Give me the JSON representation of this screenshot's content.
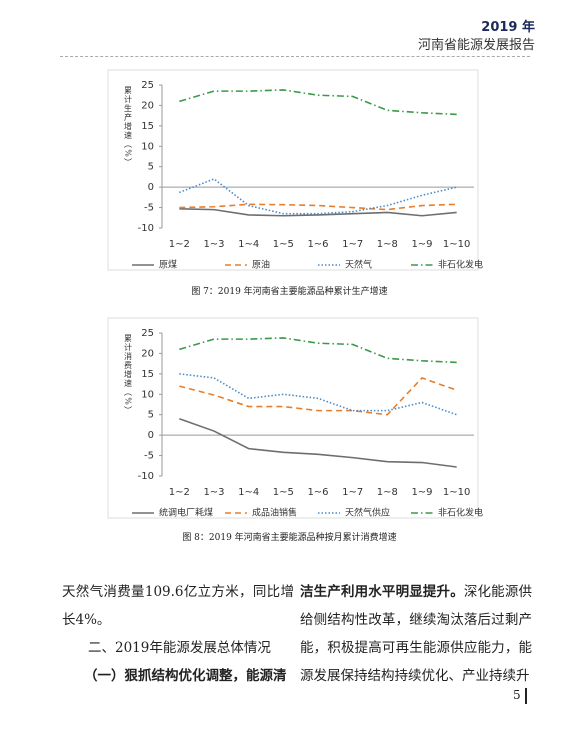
{
  "header": {
    "year": "2019 年",
    "title": "河南省能源发展报告"
  },
  "chart_data": [
    {
      "type": "line",
      "y_label": "累计生产增速（%）",
      "caption": "图 7：2019 年河南省主要能源品种累计生产增速",
      "categories": [
        "1~2",
        "1~3",
        "1~4",
        "1~5",
        "1~6",
        "1~7",
        "1~8",
        "1~9",
        "1~10"
      ],
      "ylim": [
        -10,
        25
      ],
      "yticks": [
        -10,
        -5,
        0,
        5,
        10,
        15,
        20,
        25
      ],
      "grid": false,
      "series": [
        {
          "name": "原煤",
          "color": "#6d6e70",
          "dash": "solid",
          "values": [
            -5.3,
            -5.5,
            -6.8,
            -7,
            -6.8,
            -6.5,
            -6.2,
            -7,
            -6.2
          ]
        },
        {
          "name": "原油",
          "color": "#e87d2b",
          "dash": "dashed",
          "values": [
            -5,
            -4.8,
            -4.2,
            -4.3,
            -4.5,
            -5,
            -5.5,
            -4.5,
            -4.2
          ]
        },
        {
          "name": "天然气",
          "color": "#4a8bc9",
          "dash": "dotted",
          "values": [
            -1.3,
            2,
            -4.5,
            -6.5,
            -6.5,
            -6,
            -4.5,
            -2,
            0
          ]
        },
        {
          "name": "非石化发电",
          "color": "#3a9a4a",
          "dash": "dashdot",
          "values": [
            21,
            23.5,
            23.5,
            23.8,
            22.5,
            22.2,
            18.8,
            18.2,
            17.8
          ]
        }
      ]
    },
    {
      "type": "line",
      "y_label": "累计消费增速（%）",
      "caption": "图 8：2019 年河南省主要能源品种按月累计消费增速",
      "categories": [
        "1~2",
        "1~3",
        "1~4",
        "1~5",
        "1~6",
        "1~7",
        "1~8",
        "1~9",
        "1~10"
      ],
      "ylim": [
        -10,
        25
      ],
      "yticks": [
        -10,
        -5,
        0,
        5,
        10,
        15,
        20,
        25
      ],
      "grid": false,
      "series": [
        {
          "name": "统调电厂耗煤",
          "color": "#6d6e70",
          "dash": "solid",
          "values": [
            4,
            1,
            -3.3,
            -4.2,
            -4.7,
            -5.5,
            -6.5,
            -6.7,
            -7.8
          ]
        },
        {
          "name": "成品油销售",
          "color": "#e87d2b",
          "dash": "dashed",
          "values": [
            12,
            9.8,
            7,
            7,
            6,
            6,
            5,
            14,
            11
          ]
        },
        {
          "name": "天然气供应",
          "color": "#4a8bc9",
          "dash": "dotted",
          "values": [
            15,
            14,
            9,
            10,
            9,
            6,
            6,
            8,
            5
          ]
        },
        {
          "name": "非石化发电",
          "color": "#3a9a4a",
          "dash": "dashdot",
          "values": [
            21,
            23.5,
            23.5,
            23.8,
            22.5,
            22.2,
            18.8,
            18.2,
            17.8
          ]
        }
      ]
    }
  ],
  "body": {
    "left": [
      "天然气消费量109.6亿立方米，同比增长4%。",
      "二、2019年能源发展总体情况",
      "（一）狠抓结构优化调整，能源清"
    ],
    "right_bold": "洁生产利用水平明显提升。",
    "right_text": "深化能源供给侧结构性改革，继续淘汰落后过剩产能，积极提高可再生能源供应能力，能源发展保持结构持续优化、产业持续升"
  },
  "page_number": "5"
}
